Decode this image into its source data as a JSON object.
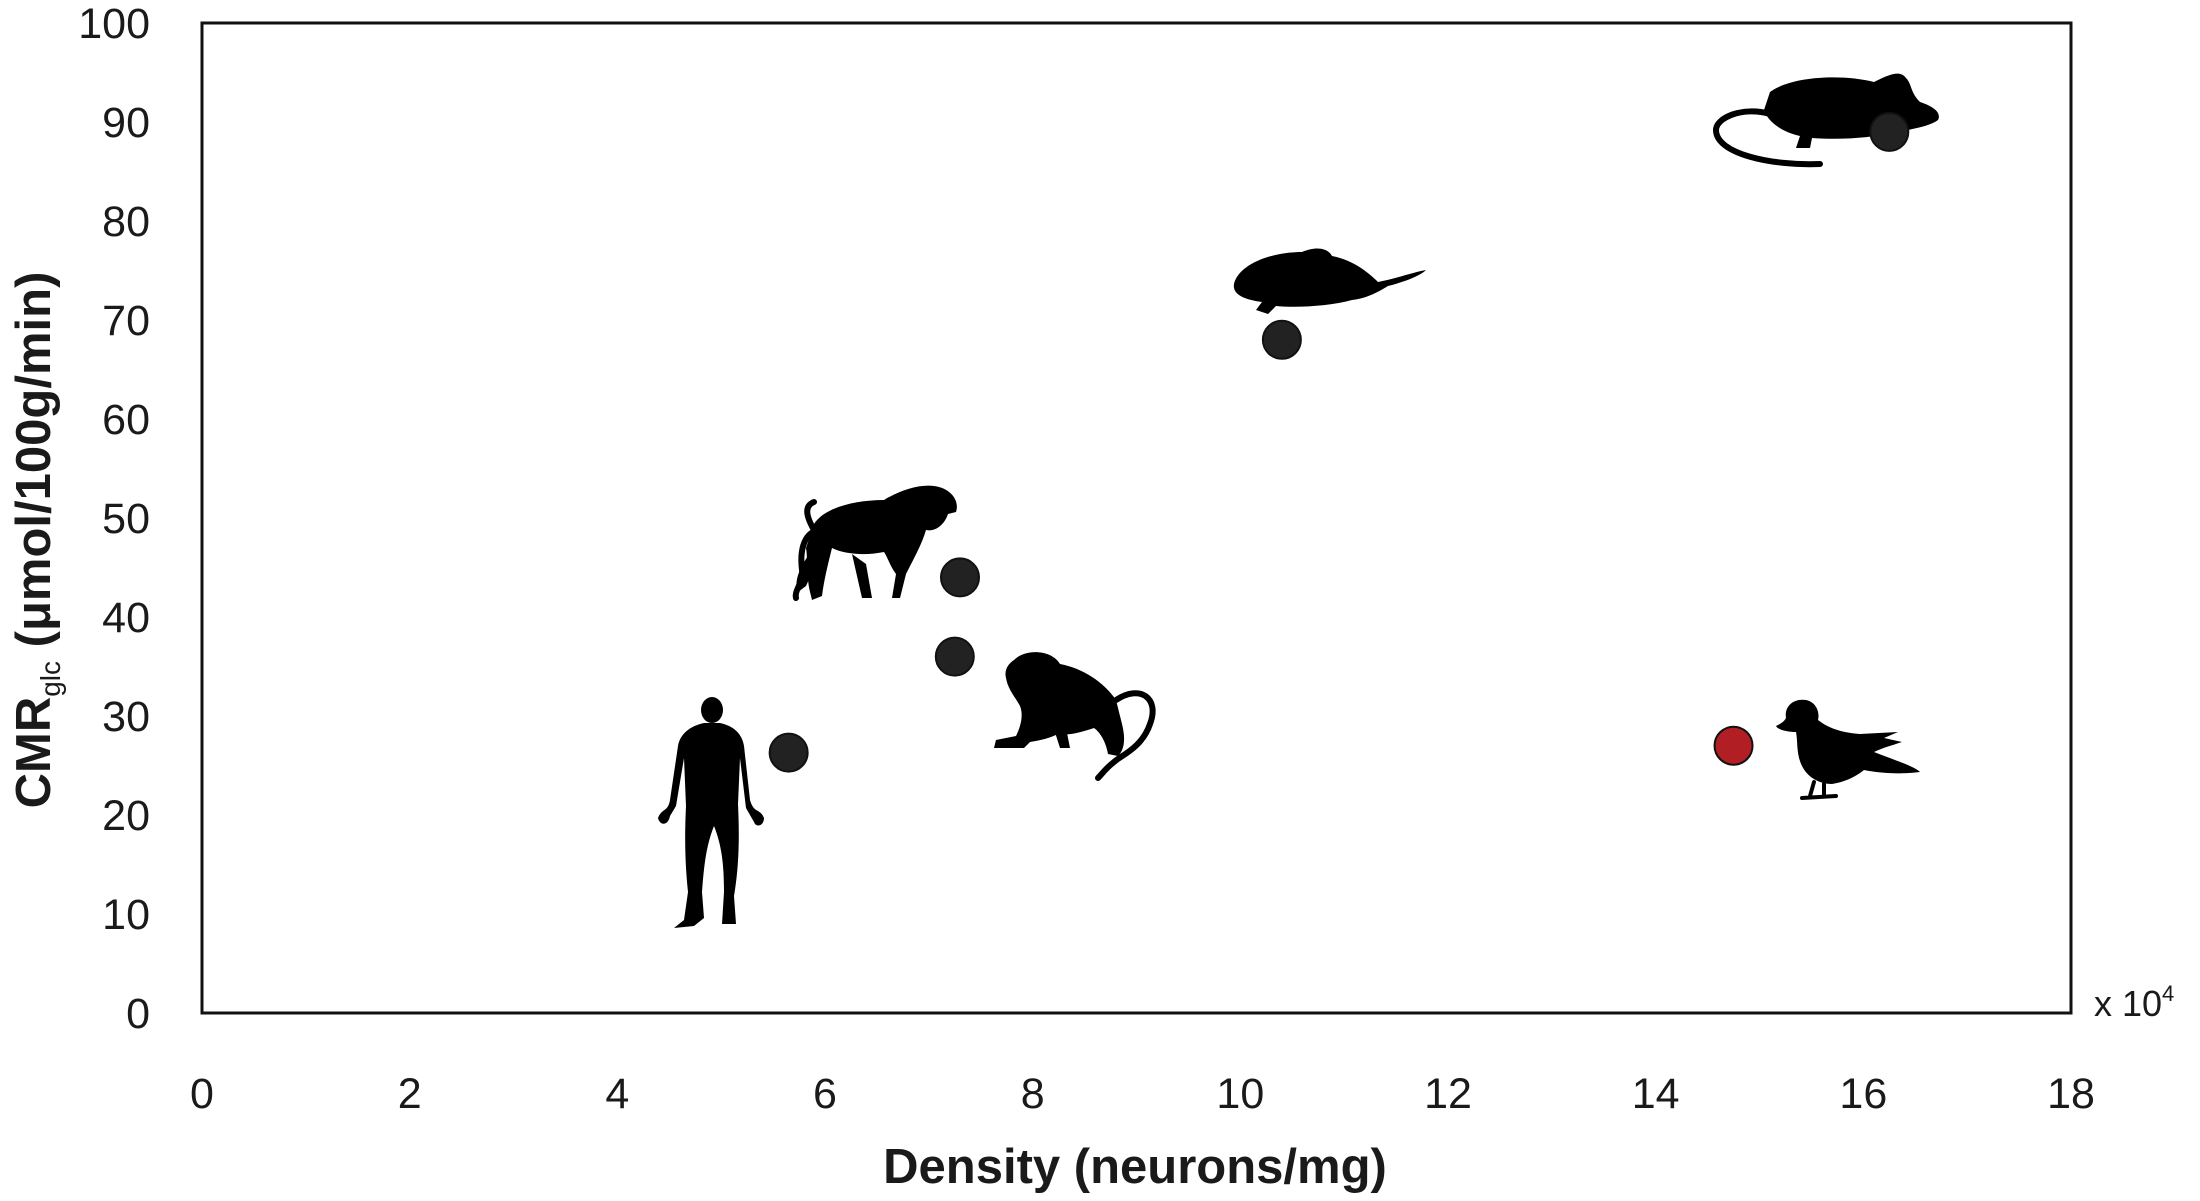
{
  "chart_data": {
    "type": "scatter",
    "xlabel": "Density (neurons/mg)",
    "ylabel": {
      "prefix": "CMR",
      "subscript": "glc",
      "units": " (μmol/100g/min)"
    },
    "x_multiplier": "x 10",
    "x_multiplier_exp": "4",
    "xlim": [
      0,
      18
    ],
    "ylim": [
      0,
      100
    ],
    "xticks": [
      "0",
      "2",
      "4",
      "6",
      "8",
      "10",
      "12",
      "14",
      "16",
      "18"
    ],
    "yticks": [
      "0",
      "10",
      "20",
      "30",
      "40",
      "50",
      "60",
      "70",
      "80",
      "90",
      "100"
    ],
    "grid": false,
    "legend": "none",
    "points": [
      {
        "species": "human",
        "icon": "human-silhouette-icon",
        "x": 5.65,
        "y": 26.3,
        "color": "#222222"
      },
      {
        "species": "macaque",
        "icon": "macaque-silhouette-icon",
        "x": 7.25,
        "y": 36.0,
        "color": "#222222"
      },
      {
        "species": "baboon",
        "icon": "baboon-silhouette-icon",
        "x": 7.3,
        "y": 44.0,
        "color": "#222222"
      },
      {
        "species": "rat",
        "icon": "rat-silhouette-icon",
        "x": 10.4,
        "y": 68.0,
        "color": "#222222"
      },
      {
        "species": "mouse",
        "icon": "mouse-silhouette-icon",
        "x": 16.25,
        "y": 89.0,
        "color": "#222222"
      },
      {
        "species": "pigeon",
        "icon": "pigeon-silhouette-icon",
        "x": 14.75,
        "y": 27.0,
        "color": "#b11f24"
      }
    ]
  }
}
